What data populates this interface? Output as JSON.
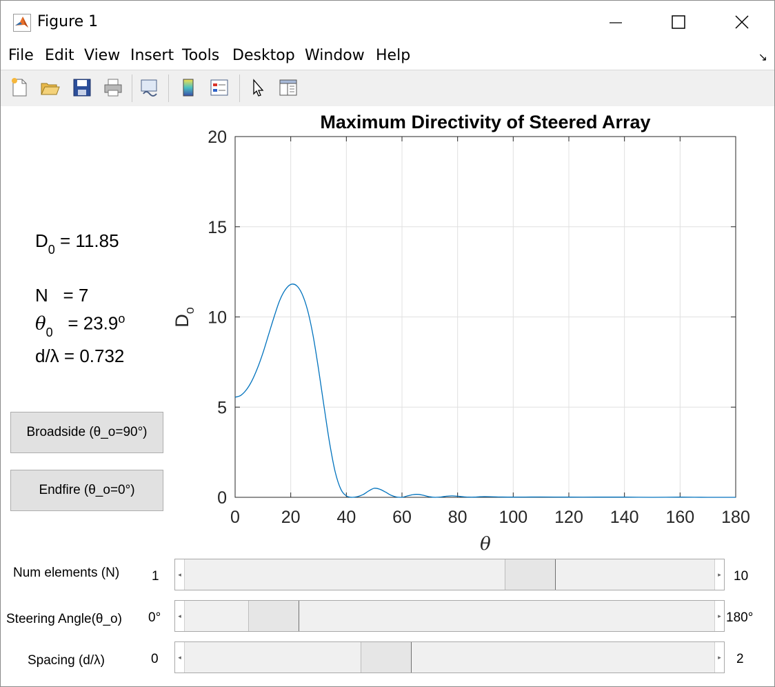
{
  "window": {
    "title": "Figure 1",
    "controls": [
      "minimize-icon",
      "maximize-icon",
      "close-icon"
    ]
  },
  "menubar": {
    "items": [
      "File",
      "Edit",
      "View",
      "Insert",
      "Tools",
      "Desktop",
      "Window",
      "Help"
    ],
    "arrow": "↘"
  },
  "toolbar": {
    "icons": [
      "new-figure-icon",
      "open-file-icon",
      "save-icon",
      "print-icon",
      "link-plot-icon",
      "colorbar-icon",
      "legend-icon",
      "edit-plot-pointer-icon",
      "property-inspector-icon"
    ]
  },
  "info": {
    "d0_label": "D",
    "d0_sub": "0",
    "d0_value": " = 11.85",
    "n_label": "N",
    "n_value": "= 7",
    "theta_label": "θ",
    "theta_sub": "0",
    "theta_value": "= 23.9",
    "theta_sup": "o",
    "spacing_label": "d/λ = 0.732"
  },
  "buttons": {
    "broadside": "Broadside (θ_o=90°)",
    "endfire": "Endfire (θ_o=0°)"
  },
  "sliders": [
    {
      "label": "Num elements (N)",
      "min_label": "1",
      "max_label": "10",
      "value": 7,
      "min": 1,
      "max": 10
    },
    {
      "label": "Steering Angle(θ_o)",
      "min_label": "0°",
      "max_label": "180°",
      "value": 23.9,
      "min": 0,
      "max": 180
    },
    {
      "label": "Spacing (d/λ)",
      "min_label": "0",
      "max_label": "2",
      "value": 0.732,
      "min": 0,
      "max": 2
    }
  ],
  "colors": {
    "line": "#0072bd",
    "grid": "#e0e0e0",
    "axis": "#262626"
  },
  "chart_data": {
    "type": "line",
    "title": "Maximum Directivity of Steered Array",
    "xlabel": "θ",
    "ylabel": "D",
    "ylabel_sub": "o",
    "xlim": [
      0,
      180
    ],
    "ylim": [
      0,
      20
    ],
    "xticks": [
      0,
      20,
      40,
      60,
      80,
      100,
      120,
      140,
      160,
      180
    ],
    "yticks": [
      0,
      5,
      10,
      15,
      20
    ],
    "grid": true,
    "series": [
      {
        "x": [
          0,
          2,
          4,
          6,
          8,
          10,
          12,
          14,
          16,
          18,
          20,
          22,
          24,
          26,
          28,
          30,
          32,
          34,
          36,
          38,
          40,
          42,
          44,
          46,
          48,
          50,
          52,
          54,
          56,
          58,
          60,
          62,
          64,
          66,
          68,
          70,
          72,
          74,
          76,
          78,
          80,
          82,
          84,
          86,
          88,
          90,
          95,
          100,
          110,
          120,
          130,
          140,
          150,
          160,
          170,
          180
        ],
        "y": [
          5.55,
          5.65,
          5.95,
          6.45,
          7.15,
          8.0,
          9.0,
          10.0,
          10.9,
          11.5,
          11.8,
          11.75,
          11.3,
          10.4,
          9.0,
          7.1,
          5.0,
          3.0,
          1.4,
          0.45,
          0.08,
          0.0,
          0.04,
          0.15,
          0.35,
          0.5,
          0.45,
          0.3,
          0.12,
          0.02,
          0.0,
          0.08,
          0.15,
          0.16,
          0.1,
          0.03,
          0.0,
          0.02,
          0.06,
          0.08,
          0.06,
          0.03,
          0.01,
          0.01,
          0.03,
          0.04,
          0.02,
          0.01,
          0.02,
          0.01,
          0.01,
          0.01,
          0.0,
          0.01,
          0.0,
          0.0
        ]
      }
    ]
  }
}
